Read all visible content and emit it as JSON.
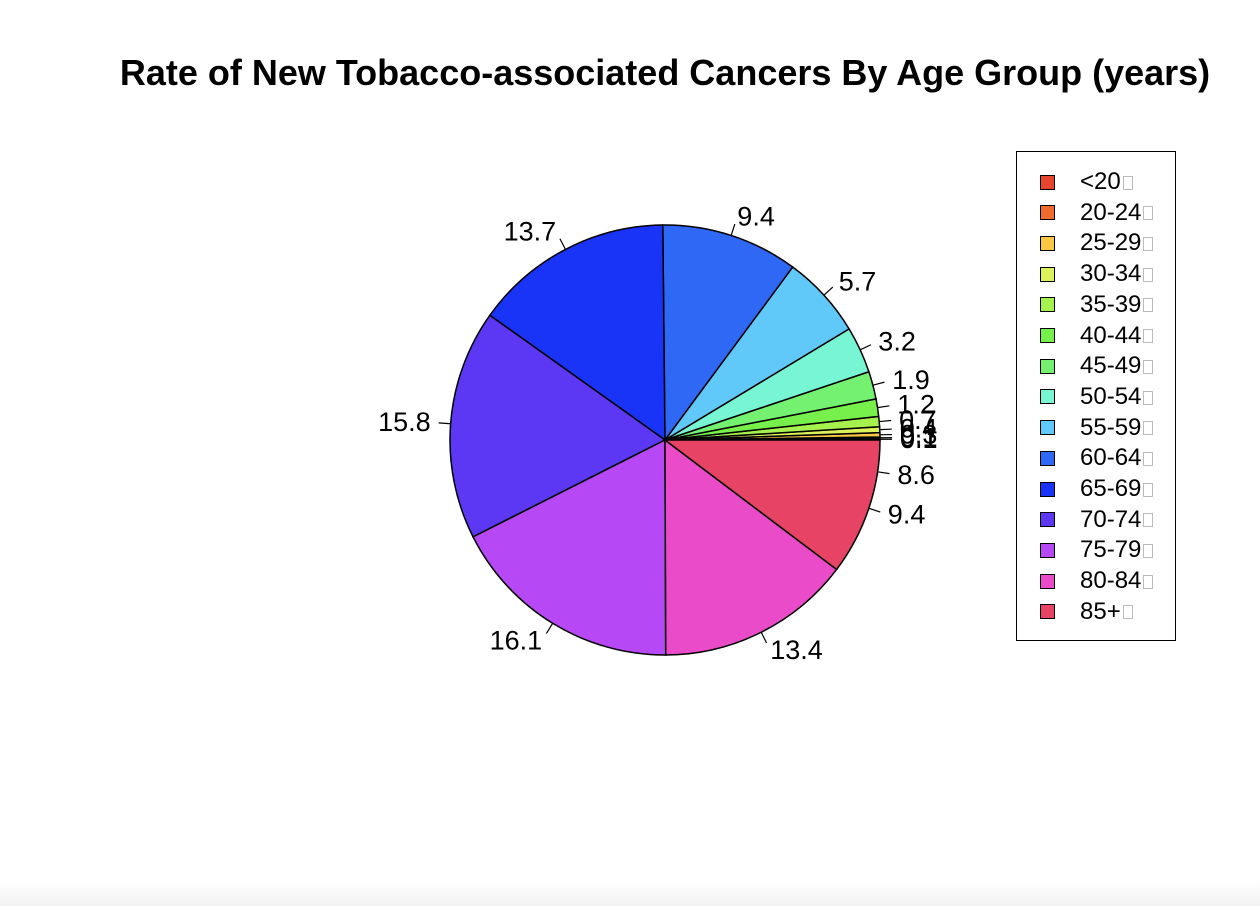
{
  "chart_data": {
    "type": "pie",
    "title": "Rate of New Tobacco-associated Cancers By Age Group (years)",
    "start_angle_deg": 0,
    "direction": "counterclockwise",
    "slices": [
      {
        "label": "<20",
        "value": 0.1,
        "value_label": "0.1",
        "color": "#E8452F"
      },
      {
        "label": "20-24",
        "value": 0.1,
        "value_label": "0.1",
        "color": "#EF6C2E"
      },
      {
        "label": "25-29",
        "value": 0.3,
        "value_label": "0.3",
        "color": "#F9C744"
      },
      {
        "label": "30-34",
        "value": 0.4,
        "value_label": "0.4",
        "color": "#DCF25A"
      },
      {
        "label": "35-39",
        "value": 0.7,
        "value_label": "0.7",
        "color": "#A6F14E"
      },
      {
        "label": "40-44",
        "value": 1.2,
        "value_label": "1.2",
        "color": "#78F04B"
      },
      {
        "label": "45-49",
        "value": 1.9,
        "value_label": "1.9",
        "color": "#75F171"
      },
      {
        "label": "50-54",
        "value": 3.2,
        "value_label": "3.2",
        "color": "#78F5D2"
      },
      {
        "label": "55-59",
        "value": 5.7,
        "value_label": "5.7",
        "color": "#60C9FA"
      },
      {
        "label": "60-64",
        "value": 9.4,
        "value_label": "9.4",
        "color": "#2E68F5"
      },
      {
        "label": "65-69",
        "value": 13.7,
        "value_label": "13.7",
        "color": "#1934F6"
      },
      {
        "label": "70-74",
        "value": 15.8,
        "value_label": "15.8",
        "color": "#5D38F4"
      },
      {
        "label": "75-79",
        "value": 16.1,
        "value_label": "16.1",
        "color": "#B748F5"
      },
      {
        "label": "80-84",
        "value": 13.4,
        "value_label": "13.4",
        "color": "#EA4BC8"
      },
      {
        "label": "85+",
        "value": 9.4,
        "value_label": "9.4",
        "color": "#E74364"
      }
    ],
    "extra_value_labels": [
      "8.6"
    ],
    "legend_position": "right"
  }
}
